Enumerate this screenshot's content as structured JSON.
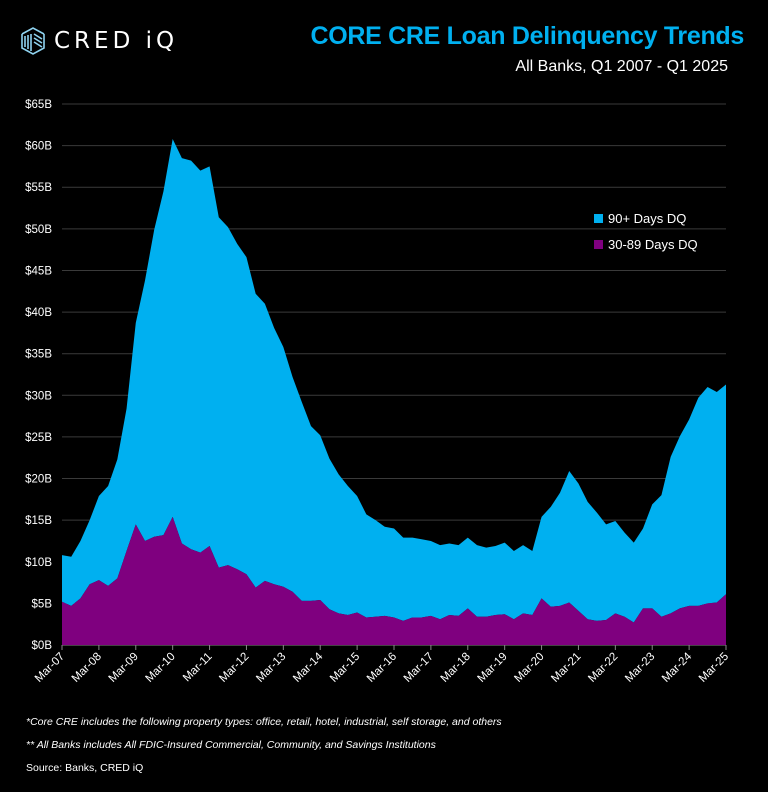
{
  "header": {
    "logo_text": "CRED iQ"
  },
  "chart_data": {
    "type": "area",
    "stacked": true,
    "title": "CORE CRE Loan Delinquency Trends",
    "subtitle": "All Banks, Q1 2007 - Q1 2025",
    "xlabel": "",
    "ylabel": "",
    "ylim": [
      0,
      65
    ],
    "y_ticks": [
      "$0B",
      "$5B",
      "$10B",
      "$15B",
      "$20B",
      "$25B",
      "$30B",
      "$35B",
      "$40B",
      "$45B",
      "$50B",
      "$55B",
      "$60B",
      "$65B"
    ],
    "x_ticks": [
      "Mar-07",
      "Mar-08",
      "Mar-09",
      "Mar-10",
      "Mar-11",
      "Mar-12",
      "Mar-13",
      "Mar-14",
      "Mar-15",
      "Mar-16",
      "Mar-17",
      "Mar-18",
      "Mar-19",
      "Mar-20",
      "Mar-21",
      "Mar-22",
      "Mar-23",
      "Mar-24",
      "Mar-25"
    ],
    "grid": true,
    "legend_position": "top-right",
    "x": [
      "Mar-07",
      "Jun-07",
      "Sep-07",
      "Dec-07",
      "Mar-08",
      "Jun-08",
      "Sep-08",
      "Dec-08",
      "Mar-09",
      "Jun-09",
      "Sep-09",
      "Dec-09",
      "Mar-10",
      "Jun-10",
      "Sep-10",
      "Dec-10",
      "Mar-11",
      "Jun-11",
      "Sep-11",
      "Dec-11",
      "Mar-12",
      "Jun-12",
      "Sep-12",
      "Dec-12",
      "Mar-13",
      "Jun-13",
      "Sep-13",
      "Dec-13",
      "Mar-14",
      "Jun-14",
      "Sep-14",
      "Dec-14",
      "Mar-15",
      "Jun-15",
      "Sep-15",
      "Dec-15",
      "Mar-16",
      "Jun-16",
      "Sep-16",
      "Dec-16",
      "Mar-17",
      "Jun-17",
      "Sep-17",
      "Dec-17",
      "Mar-18",
      "Jun-18",
      "Sep-18",
      "Dec-18",
      "Mar-19",
      "Jun-19",
      "Sep-19",
      "Dec-19",
      "Mar-20",
      "Jun-20",
      "Sep-20",
      "Dec-20",
      "Mar-21",
      "Jun-21",
      "Sep-21",
      "Dec-21",
      "Mar-22",
      "Jun-22",
      "Sep-22",
      "Dec-22",
      "Mar-23",
      "Jun-23",
      "Sep-23",
      "Dec-23",
      "Mar-24",
      "Jun-24",
      "Sep-24",
      "Dec-24",
      "Mar-25"
    ],
    "series": [
      {
        "name": "90+ Days DQ",
        "color": "#00b0f0",
        "values": [
          5.6,
          5.9,
          6.9,
          7.7,
          10.1,
          12.0,
          14.3,
          17.1,
          24.2,
          31.3,
          36.9,
          41.3,
          45.4,
          46.3,
          46.7,
          45.9,
          45.6,
          42.1,
          40.6,
          39.1,
          38.1,
          35.3,
          33.3,
          30.8,
          28.8,
          25.8,
          23.9,
          21.0,
          19.8,
          18.1,
          16.7,
          15.5,
          14.0,
          12.4,
          11.6,
          10.7,
          10.7,
          10.0,
          9.6,
          9.4,
          9.0,
          8.9,
          8.6,
          8.5,
          8.5,
          8.6,
          8.3,
          8.3,
          8.6,
          8.2,
          8.2,
          7.7,
          9.8,
          12.0,
          13.6,
          15.8,
          15.3,
          14.1,
          13.0,
          11.5,
          11.1,
          10.1,
          9.6,
          9.6,
          12.5,
          14.6,
          18.8,
          20.7,
          22.4,
          25.0,
          26.0,
          25.3,
          25.2
        ]
      },
      {
        "name": "30-89 Days DQ",
        "color": "#7f007f",
        "values": [
          5.2,
          4.7,
          5.6,
          7.3,
          7.8,
          7.1,
          8.0,
          11.3,
          14.5,
          12.5,
          13.0,
          13.2,
          15.4,
          12.2,
          11.5,
          11.1,
          11.9,
          9.3,
          9.6,
          9.1,
          8.5,
          6.9,
          7.7,
          7.3,
          7.0,
          6.4,
          5.3,
          5.3,
          5.4,
          4.3,
          3.8,
          3.6,
          3.9,
          3.3,
          3.4,
          3.5,
          3.3,
          2.9,
          3.3,
          3.3,
          3.5,
          3.1,
          3.6,
          3.5,
          4.4,
          3.4,
          3.4,
          3.6,
          3.7,
          3.1,
          3.8,
          3.6,
          5.6,
          4.6,
          4.7,
          5.1,
          4.1,
          3.1,
          2.9,
          3.0,
          3.8,
          3.4,
          2.7,
          4.4,
          4.4,
          3.4,
          3.8,
          4.4,
          4.7,
          4.7,
          5.0,
          5.1,
          6.1
        ]
      }
    ]
  },
  "footnotes": {
    "note1": "*Core CRE includes the following property types: office, retail, hotel, industrial, self storage, and others",
    "note2": "** All Banks includes All FDIC-Insured Commercial, Community, and Savings Institutions",
    "source": "Source: Banks, CRED iQ"
  }
}
